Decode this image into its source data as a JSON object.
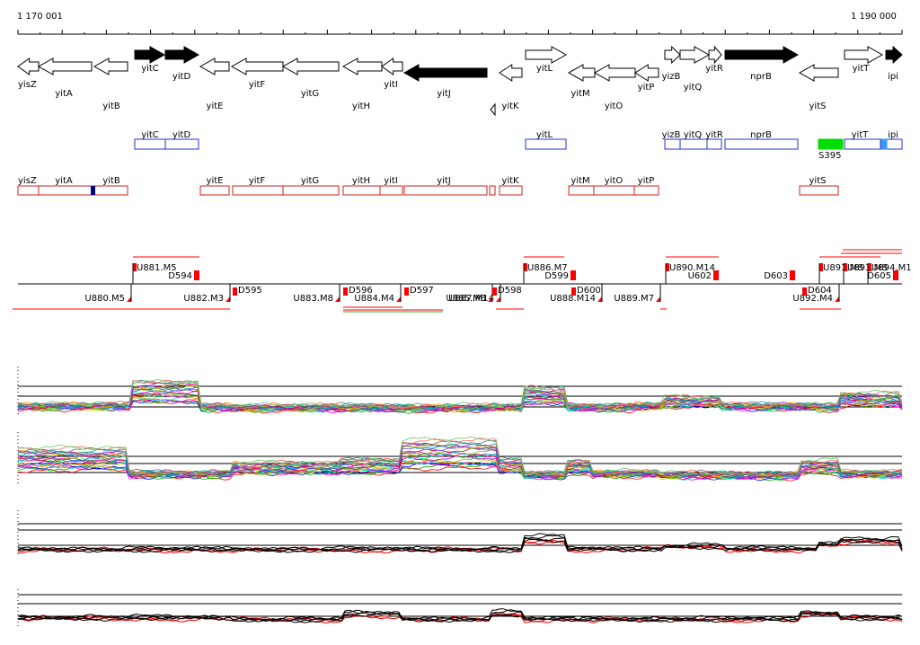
{
  "view": {
    "start_label": "1 170 001",
    "end_label": "1 190 000",
    "colors": {
      "axis": "#000000",
      "gene_fill_open": "#ffffff",
      "gene_fill_black": "#000000",
      "operon_blue": "#2233cc",
      "operon_red": "#cc2222",
      "marker_red": "#ff0000",
      "green_box": "#00dd00",
      "lightblue_box": "#3399ff",
      "darkblue_box": "#000088"
    }
  },
  "genes": [
    {
      "name": "yisZ",
      "strand": "-",
      "fill": "white"
    },
    {
      "name": "yitA",
      "strand": "-",
      "fill": "white"
    },
    {
      "name": "yitB",
      "strand": "-",
      "fill": "white"
    },
    {
      "name": "yitC",
      "strand": "+",
      "fill": "black"
    },
    {
      "name": "yitD",
      "strand": "+",
      "fill": "black"
    },
    {
      "name": "yitE",
      "strand": "-",
      "fill": "white"
    },
    {
      "name": "yitF",
      "strand": "-",
      "fill": "white"
    },
    {
      "name": "yitG",
      "strand": "-",
      "fill": "white"
    },
    {
      "name": "yitH",
      "strand": "-",
      "fill": "white"
    },
    {
      "name": "yitI",
      "strand": "-",
      "fill": "white"
    },
    {
      "name": "yitJ",
      "strand": "-",
      "fill": "black"
    },
    {
      "name": "yitK",
      "strand": "-",
      "fill": "white"
    },
    {
      "name": "yitL",
      "strand": "+",
      "fill": "white"
    },
    {
      "name": "yitM",
      "strand": "-",
      "fill": "white"
    },
    {
      "name": "yitO",
      "strand": "-",
      "fill": "white"
    },
    {
      "name": "yitP",
      "strand": "-",
      "fill": "white"
    },
    {
      "name": "yizB",
      "strand": "+",
      "fill": "white"
    },
    {
      "name": "yitQ",
      "strand": "+",
      "fill": "white"
    },
    {
      "name": "yitR",
      "strand": "+",
      "fill": "white"
    },
    {
      "name": "nprB",
      "strand": "+",
      "fill": "black"
    },
    {
      "name": "yitS",
      "strand": "-",
      "fill": "white"
    },
    {
      "name": "yitT",
      "strand": "+",
      "fill": "white"
    },
    {
      "name": "ipi",
      "strand": "+",
      "fill": "black"
    }
  ],
  "blue_operons": [
    {
      "labels": [
        "yitC",
        "yitD"
      ]
    },
    {
      "labels": [
        "yitL"
      ]
    },
    {
      "labels": [
        "yizB",
        "yitQ",
        "yitR"
      ]
    },
    {
      "labels": [
        "nprB"
      ]
    },
    {
      "labels": [
        "yitT",
        "ipi"
      ]
    }
  ],
  "green_box_label": "S395",
  "red_operons": [
    {
      "labels": [
        "yisZ",
        "yitA",
        "yitB"
      ]
    },
    {
      "labels": [
        "yitE"
      ]
    },
    {
      "labels": [
        "yitF",
        "yitG"
      ]
    },
    {
      "labels": [
        "yitH",
        "yitI"
      ]
    },
    {
      "labels": [
        "yitJ"
      ]
    },
    {
      "labels": []
    },
    {
      "labels": [
        "yitK"
      ]
    },
    {
      "labels": [
        "yitM",
        "yitO"
      ]
    },
    {
      "labels": [
        "yitP"
      ]
    },
    {
      "labels": [
        "yitS"
      ]
    }
  ],
  "upper_features": [
    "U881.M5",
    "D594",
    "U886.M7",
    "D599",
    "U890.M14",
    "U602",
    "D603",
    "U891.M8",
    "U893.M8",
    "U894.M1",
    "D605"
  ],
  "lower_features": [
    "U880.M5",
    "U882.M3",
    "D595",
    "U883.M8",
    "D596",
    "U884.M4",
    "D597",
    "U885.M8",
    "U887.M14",
    "D598",
    "U888.M14",
    "D600",
    "U889.M7",
    "D604",
    "U892.M4"
  ],
  "panels": [
    {
      "name": "expression-panel-1",
      "style": "multicolor"
    },
    {
      "name": "expression-panel-2",
      "style": "multicolor"
    },
    {
      "name": "expression-panel-3",
      "style": "black-red"
    },
    {
      "name": "expression-panel-4",
      "style": "black-red"
    }
  ]
}
